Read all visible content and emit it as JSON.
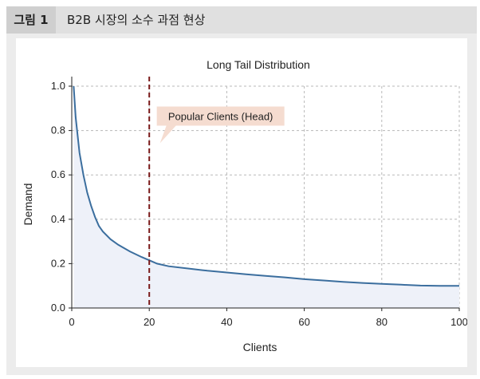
{
  "figure": {
    "label": "그림 1",
    "title": "B2B 시장의 소수 과점 현상"
  },
  "chart_data": {
    "type": "area",
    "title": "Long Tail Distribution",
    "xlabel": "Clients",
    "ylabel": "Demand",
    "xlim": [
      0,
      100
    ],
    "ylim": [
      0,
      1.0
    ],
    "x_ticks": [
      0,
      20,
      40,
      60,
      80,
      100
    ],
    "y_ticks": [
      0.0,
      0.2,
      0.4,
      0.6,
      0.8,
      1.0
    ],
    "x_tick_labels": [
      "0",
      "20",
      "40",
      "60",
      "80",
      "100"
    ],
    "y_tick_labels": [
      "0.0",
      "0.2",
      "0.4",
      "0.6",
      "0.8",
      "1.0"
    ],
    "grid": true,
    "series": [
      {
        "x": [
          0.5,
          1,
          2,
          3,
          4,
          5,
          6,
          7,
          8,
          10,
          12,
          15,
          18,
          20,
          22,
          25,
          30,
          35,
          40,
          45,
          50,
          55,
          60,
          65,
          70,
          75,
          80,
          85,
          90,
          95,
          100
        ],
        "y": [
          1.0,
          0.86,
          0.7,
          0.6,
          0.52,
          0.46,
          0.41,
          0.37,
          0.345,
          0.31,
          0.285,
          0.255,
          0.23,
          0.215,
          0.2,
          0.188,
          0.178,
          0.168,
          0.16,
          0.152,
          0.145,
          0.138,
          0.13,
          0.124,
          0.118,
          0.113,
          0.109,
          0.105,
          0.101,
          0.1,
          0.1
        ]
      }
    ],
    "threshold": {
      "x": 20,
      "color": "#7a1a1a"
    },
    "annotation": {
      "text": "Popular Clients (Head)",
      "x": 24,
      "y": 0.865
    },
    "line_color": "#3b6e9e",
    "fill_color": "#eef1f9",
    "annotation_bg": "#f5dcd0"
  }
}
